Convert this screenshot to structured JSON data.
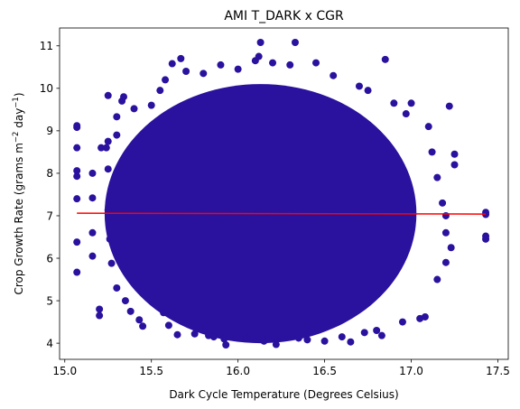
{
  "chart_data": {
    "type": "scatter",
    "title": "AMI T_DARK x CGR",
    "xlabel": "Dark Cycle Temperature (Degrees Celsius)",
    "ylabel": {
      "prefix": "Crop Growth Rate (grams m",
      "sup1": "−2",
      "mid": " day",
      "sup2": "−1",
      "suffix": ")"
    },
    "xlim": [
      14.97,
      17.56
    ],
    "ylim": [
      3.62,
      11.42
    ],
    "x_ticks": [
      15.0,
      15.5,
      16.0,
      16.5,
      17.0,
      17.5
    ],
    "x_tick_labels": [
      "15.0",
      "15.5",
      "16.0",
      "16.5",
      "17.0",
      "17.5"
    ],
    "y_ticks": [
      4,
      5,
      6,
      7,
      8,
      9,
      10,
      11
    ],
    "y_tick_labels": [
      "4",
      "5",
      "6",
      "7",
      "8",
      "9",
      "10",
      "11"
    ],
    "grid": false,
    "series": [
      {
        "kind": "scatter",
        "color": "#2a119e",
        "cloud": {
          "x_center": 16.13,
          "y_center": 7.05,
          "x_radius": 0.9,
          "y_radius": 3.05
        },
        "points": [
          [
            15.07,
            9.12
          ],
          [
            15.07,
            9.08
          ],
          [
            15.07,
            8.6
          ],
          [
            15.07,
            7.93
          ],
          [
            15.07,
            8.06
          ],
          [
            15.07,
            7.4
          ],
          [
            15.07,
            6.38
          ],
          [
            15.07,
            5.67
          ],
          [
            15.16,
            8.0
          ],
          [
            15.16,
            7.42
          ],
          [
            15.16,
            6.6
          ],
          [
            15.16,
            6.05
          ],
          [
            15.2,
            4.8
          ],
          [
            15.2,
            4.65
          ],
          [
            15.21,
            8.6
          ],
          [
            15.24,
            8.6
          ],
          [
            15.25,
            9.83
          ],
          [
            15.25,
            8.75
          ],
          [
            15.25,
            8.1
          ],
          [
            15.25,
            7.13
          ],
          [
            15.26,
            6.45
          ],
          [
            15.27,
            5.88
          ],
          [
            15.3,
            9.33
          ],
          [
            15.3,
            8.9
          ],
          [
            15.33,
            9.7
          ],
          [
            15.34,
            9.8
          ],
          [
            15.3,
            5.3
          ],
          [
            15.35,
            5.0
          ],
          [
            15.38,
            4.75
          ],
          [
            15.4,
            9.52
          ],
          [
            15.43,
            4.55
          ],
          [
            15.45,
            4.4
          ],
          [
            15.5,
            9.6
          ],
          [
            15.55,
            9.95
          ],
          [
            15.58,
            10.2
          ],
          [
            15.6,
            4.42
          ],
          [
            15.62,
            10.58
          ],
          [
            15.65,
            4.2
          ],
          [
            15.67,
            10.7
          ],
          [
            15.7,
            10.4
          ],
          [
            15.75,
            4.22
          ],
          [
            15.8,
            10.35
          ],
          [
            15.83,
            4.18
          ],
          [
            15.86,
            4.15
          ],
          [
            15.9,
            10.55
          ],
          [
            15.92,
            4.1
          ],
          [
            15.93,
            3.96
          ],
          [
            16.0,
            10.45
          ],
          [
            16.05,
            4.12
          ],
          [
            16.1,
            10.65
          ],
          [
            16.12,
            10.75
          ],
          [
            16.15,
            4.05
          ],
          [
            16.2,
            10.6
          ],
          [
            16.22,
            3.97
          ],
          [
            16.25,
            4.15
          ],
          [
            16.3,
            10.55
          ],
          [
            16.33,
            11.08
          ],
          [
            16.35,
            4.12
          ],
          [
            16.4,
            4.08
          ],
          [
            16.45,
            10.6
          ],
          [
            16.5,
            4.05
          ],
          [
            16.55,
            10.3
          ],
          [
            16.6,
            4.15
          ],
          [
            16.65,
            4.03
          ],
          [
            16.7,
            10.05
          ],
          [
            16.73,
            4.25
          ],
          [
            16.75,
            9.95
          ],
          [
            16.8,
            4.3
          ],
          [
            16.83,
            4.18
          ],
          [
            16.85,
            10.68
          ],
          [
            16.9,
            9.65
          ],
          [
            16.95,
            4.5
          ],
          [
            16.97,
            9.4
          ],
          [
            17.0,
            9.65
          ],
          [
            17.05,
            4.58
          ],
          [
            17.08,
            4.62
          ],
          [
            17.1,
            9.1
          ],
          [
            17.12,
            8.5
          ],
          [
            17.15,
            7.9
          ],
          [
            17.18,
            7.3
          ],
          [
            17.2,
            6.6
          ],
          [
            17.2,
            5.9
          ],
          [
            17.22,
            9.58
          ],
          [
            17.23,
            6.25
          ],
          [
            17.25,
            8.45
          ],
          [
            17.25,
            8.2
          ],
          [
            17.2,
            7.0
          ],
          [
            17.15,
            5.5
          ],
          [
            17.43,
            7.08
          ],
          [
            17.43,
            7.03
          ],
          [
            17.43,
            6.52
          ],
          [
            17.43,
            6.45
          ],
          [
            16.13,
            11.08
          ],
          [
            15.57,
            4.72
          ]
        ]
      },
      {
        "kind": "line",
        "color": "#ff0000",
        "x": [
          15.07,
          17.43
        ],
        "y": [
          7.06,
          7.04
        ]
      }
    ]
  }
}
